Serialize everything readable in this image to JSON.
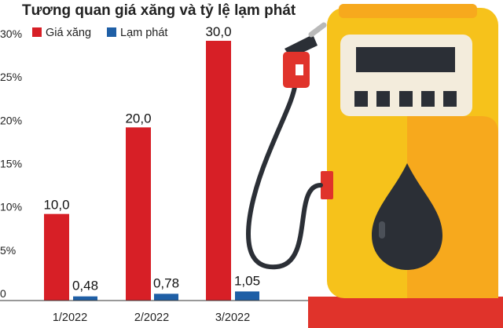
{
  "colors": {
    "gas_price": "#d71f26",
    "inflation": "#1f5fa6",
    "pump_yellow": "#f6c21b",
    "pump_orange": "#f7a91d",
    "pump_dark": "#2b2f36",
    "base_red": "#e0332b"
  },
  "chart_data": {
    "type": "bar",
    "title": "Tương quan giá xăng và tỷ lệ lạm phát",
    "categories": [
      "1/2022",
      "2/2022",
      "3/2022"
    ],
    "series": [
      {
        "name": "Giá xăng",
        "values": [
          10.0,
          20.0,
          30.0
        ],
        "labels": [
          "10,0",
          "20,0",
          "30,0"
        ]
      },
      {
        "name": "Lạm phát",
        "values": [
          0.48,
          0.78,
          1.05
        ],
        "labels": [
          "0,48",
          "0,78",
          "1,05"
        ]
      }
    ],
    "ylim": [
      0,
      30
    ],
    "y_ticks": [
      {
        "value": 0,
        "label": "0"
      },
      {
        "value": 5,
        "label": "5%"
      },
      {
        "value": 10,
        "label": "10%"
      },
      {
        "value": 15,
        "label": "15%"
      },
      {
        "value": 20,
        "label": "20%"
      },
      {
        "value": 25,
        "label": "25%"
      },
      {
        "value": 30,
        "label": "30%"
      }
    ],
    "legend_position": "top-left",
    "grid": false
  },
  "illustration": {
    "icon": "fuel-pump-icon"
  }
}
